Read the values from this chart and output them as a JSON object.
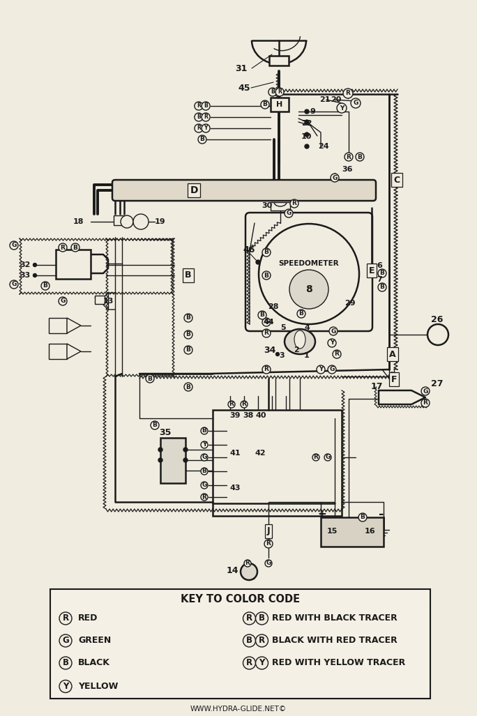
{
  "bg_color": "#f0ece0",
  "line_color": "#1a1a1a",
  "watermark": "WWW.HYDRA-GLIDE.NET©",
  "key_title": "KEY TO COLOR CODE",
  "key_left": [
    [
      "R",
      "RED"
    ],
    [
      "G",
      "GREEN"
    ],
    [
      "B",
      "BLACK"
    ],
    [
      "Y",
      "YELLOW"
    ]
  ],
  "key_right": [
    [
      "R",
      "B",
      "RED WITH BLACK TRACER"
    ],
    [
      "B",
      "R",
      "BLACK WITH RED TRACER"
    ],
    [
      "R",
      "Y",
      "RED WITH YELLOW TRACER"
    ]
  ]
}
